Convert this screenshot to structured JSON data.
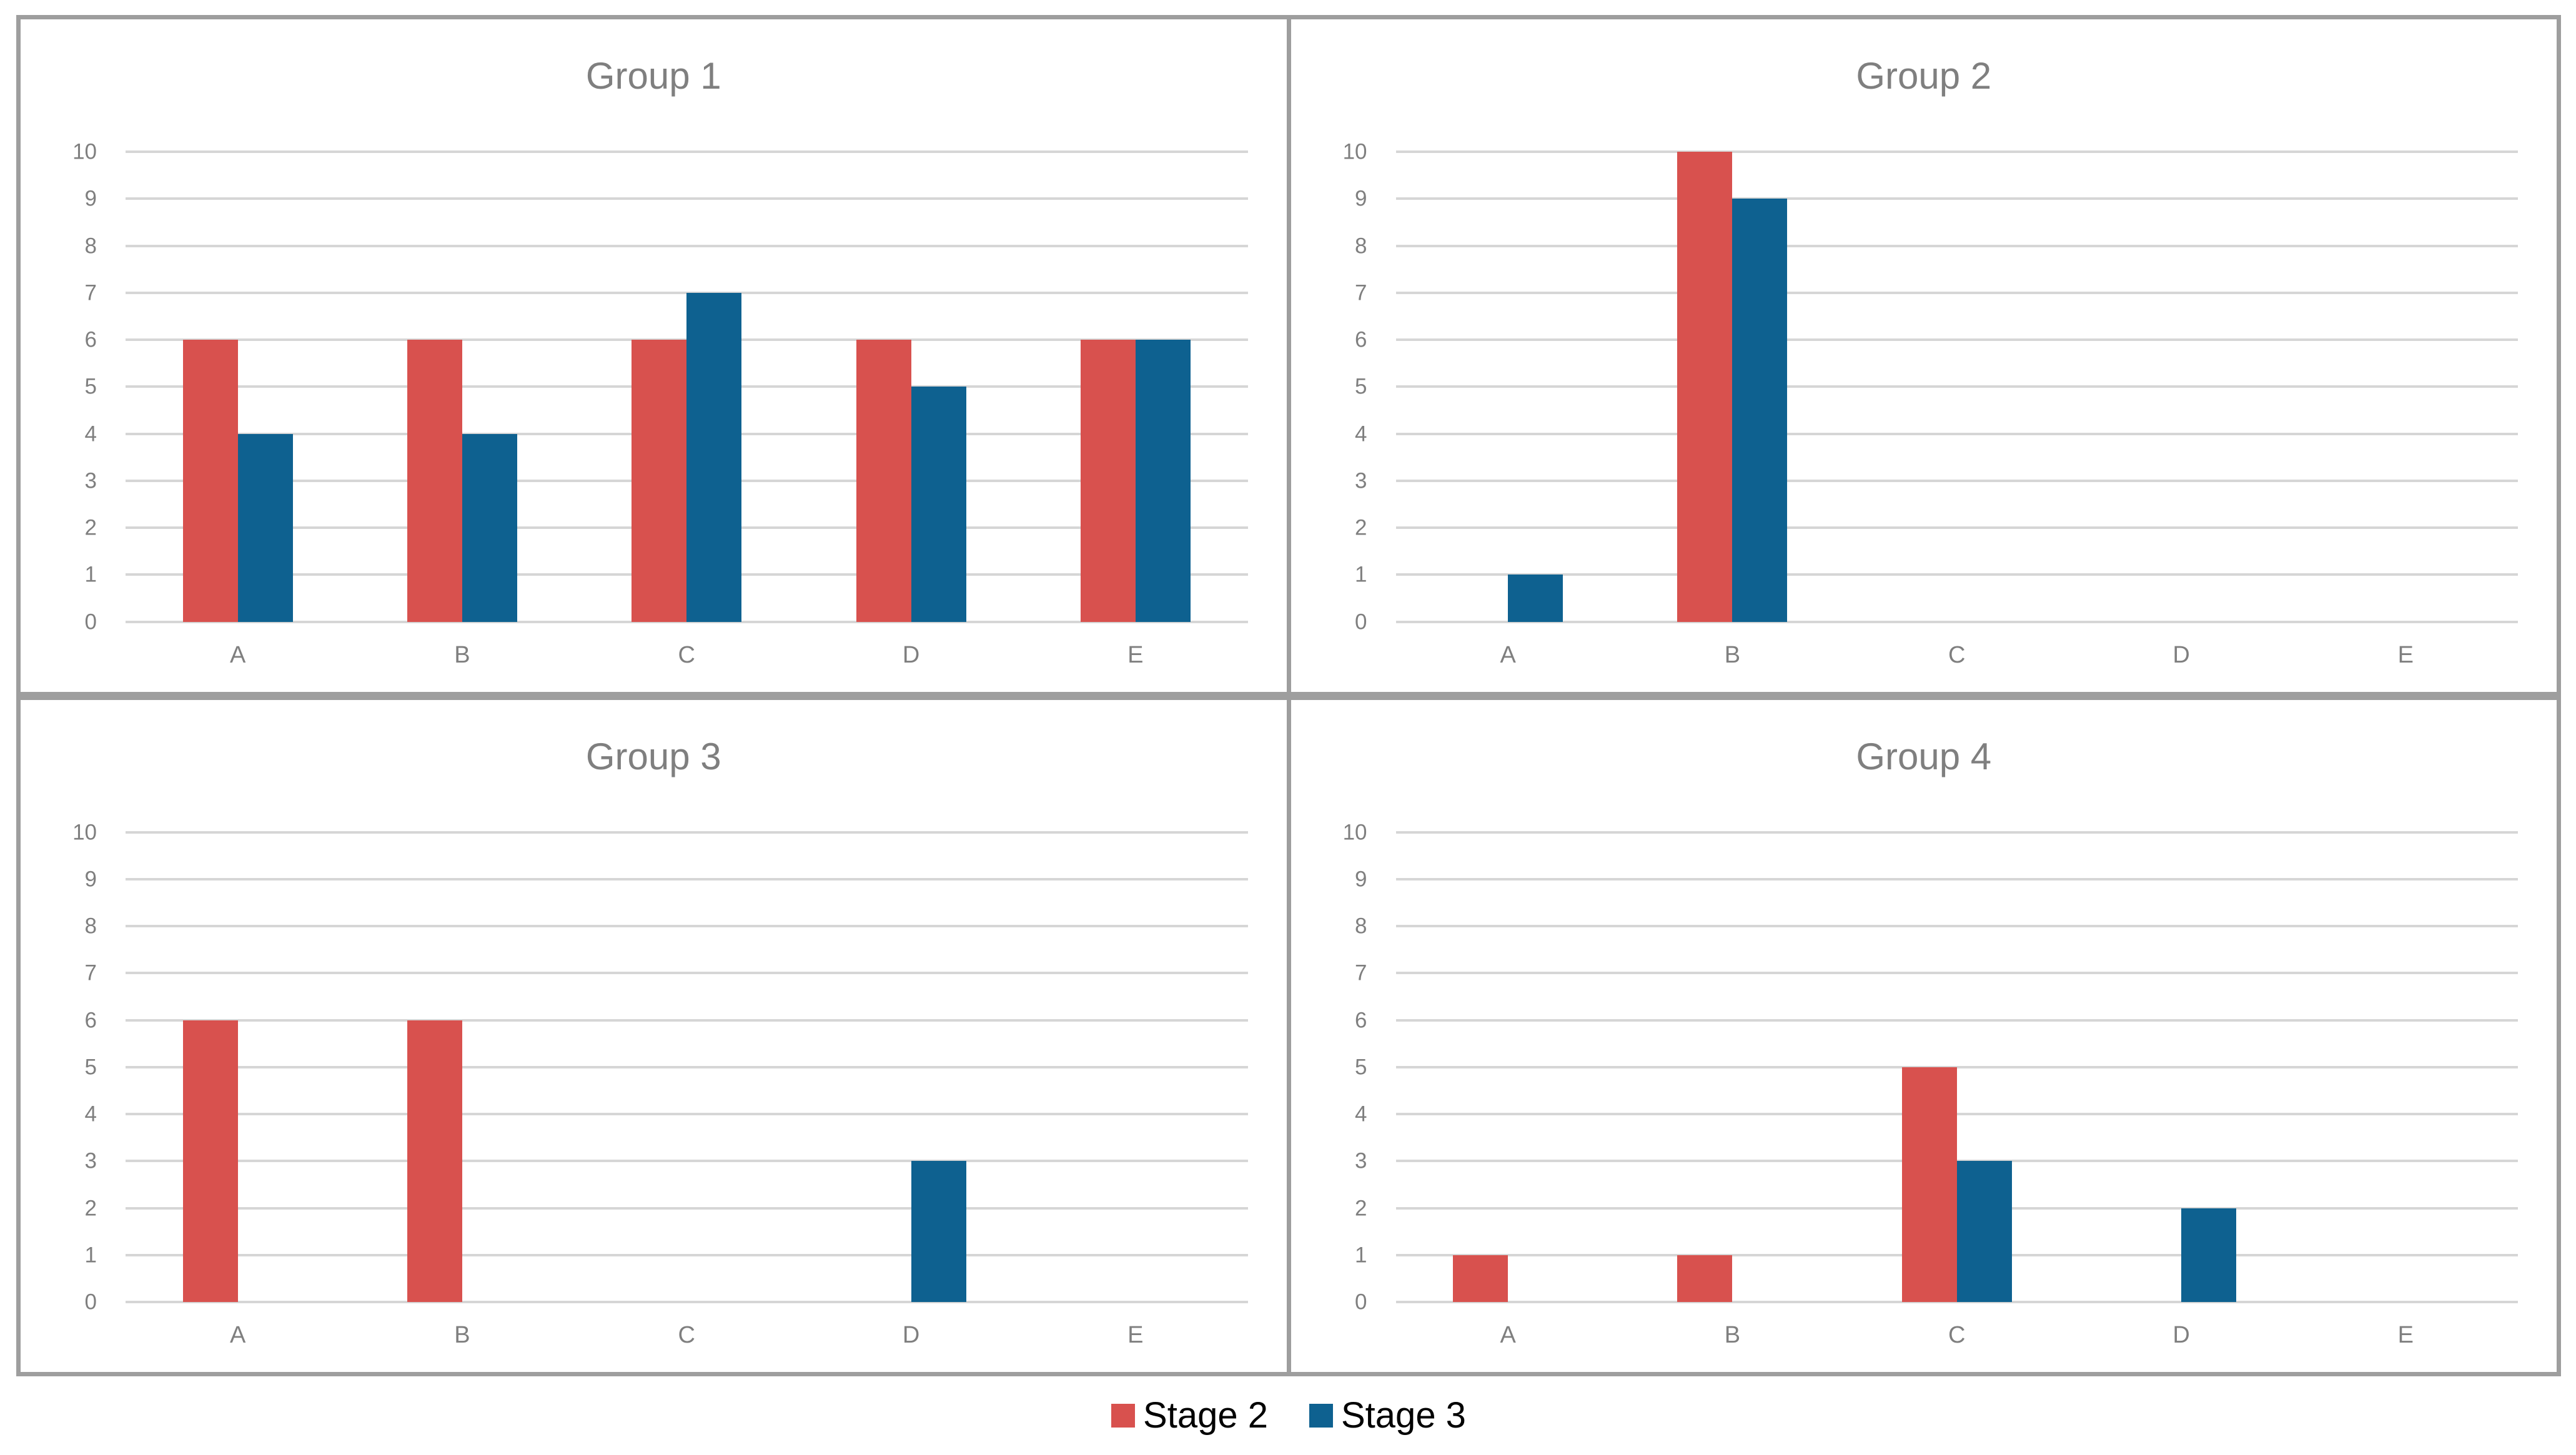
{
  "page": {
    "background": "#ffffff"
  },
  "colors": {
    "stage2": "#D8514E",
    "stage3": "#0E6190",
    "gridline": "#D6D6D6",
    "panel_border": "#9E9E9E",
    "title_text": "#7F7F7F",
    "axis_text": "#7F7F7F",
    "legend_text": "#000000"
  },
  "chart_data": [
    {
      "type": "bar",
      "title": "Group 1",
      "categories": [
        "A",
        "B",
        "C",
        "D",
        "E"
      ],
      "series": [
        {
          "name": "Stage 2",
          "color": "#D8514E",
          "values": [
            6,
            6,
            6,
            6,
            6
          ]
        },
        {
          "name": "Stage 3",
          "color": "#0E6190",
          "values": [
            4,
            4,
            7,
            5,
            6
          ]
        }
      ],
      "ylim": [
        0,
        10
      ],
      "yticks": [
        0,
        1,
        2,
        3,
        4,
        5,
        6,
        7,
        8,
        9,
        10
      ],
      "grid": true,
      "legend_position": "bottom-shared"
    },
    {
      "type": "bar",
      "title": "Group 2",
      "categories": [
        "A",
        "B",
        "C",
        "D",
        "E"
      ],
      "series": [
        {
          "name": "Stage 2",
          "color": "#D8514E",
          "values": [
            0,
            10,
            0,
            0,
            0
          ]
        },
        {
          "name": "Stage 3",
          "color": "#0E6190",
          "values": [
            1,
            9,
            0,
            0,
            0
          ]
        }
      ],
      "ylim": [
        0,
        10
      ],
      "yticks": [
        0,
        1,
        2,
        3,
        4,
        5,
        6,
        7,
        8,
        9,
        10
      ],
      "grid": true,
      "legend_position": "bottom-shared"
    },
    {
      "type": "bar",
      "title": "Group 3",
      "categories": [
        "A",
        "B",
        "C",
        "D",
        "E"
      ],
      "series": [
        {
          "name": "Stage 2",
          "color": "#D8514E",
          "values": [
            6,
            6,
            0,
            0,
            0
          ]
        },
        {
          "name": "Stage 3",
          "color": "#0E6190",
          "values": [
            0,
            0,
            0,
            3,
            0
          ]
        }
      ],
      "ylim": [
        0,
        10
      ],
      "yticks": [
        0,
        1,
        2,
        3,
        4,
        5,
        6,
        7,
        8,
        9,
        10
      ],
      "grid": true,
      "legend_position": "bottom-shared"
    },
    {
      "type": "bar",
      "title": "Group 4",
      "categories": [
        "A",
        "B",
        "C",
        "D",
        "E"
      ],
      "series": [
        {
          "name": "Stage 2",
          "color": "#D8514E",
          "values": [
            1,
            1,
            5,
            0,
            0
          ]
        },
        {
          "name": "Stage 3",
          "color": "#0E6190",
          "values": [
            0,
            0,
            3,
            2,
            0
          ]
        }
      ],
      "ylim": [
        0,
        10
      ],
      "yticks": [
        0,
        1,
        2,
        3,
        4,
        5,
        6,
        7,
        8,
        9,
        10
      ],
      "grid": true,
      "legend_position": "bottom-shared"
    }
  ],
  "legend": {
    "items": [
      {
        "label": "Stage 2",
        "color": "#D8514E"
      },
      {
        "label": "Stage 3",
        "color": "#0E6190"
      }
    ]
  }
}
